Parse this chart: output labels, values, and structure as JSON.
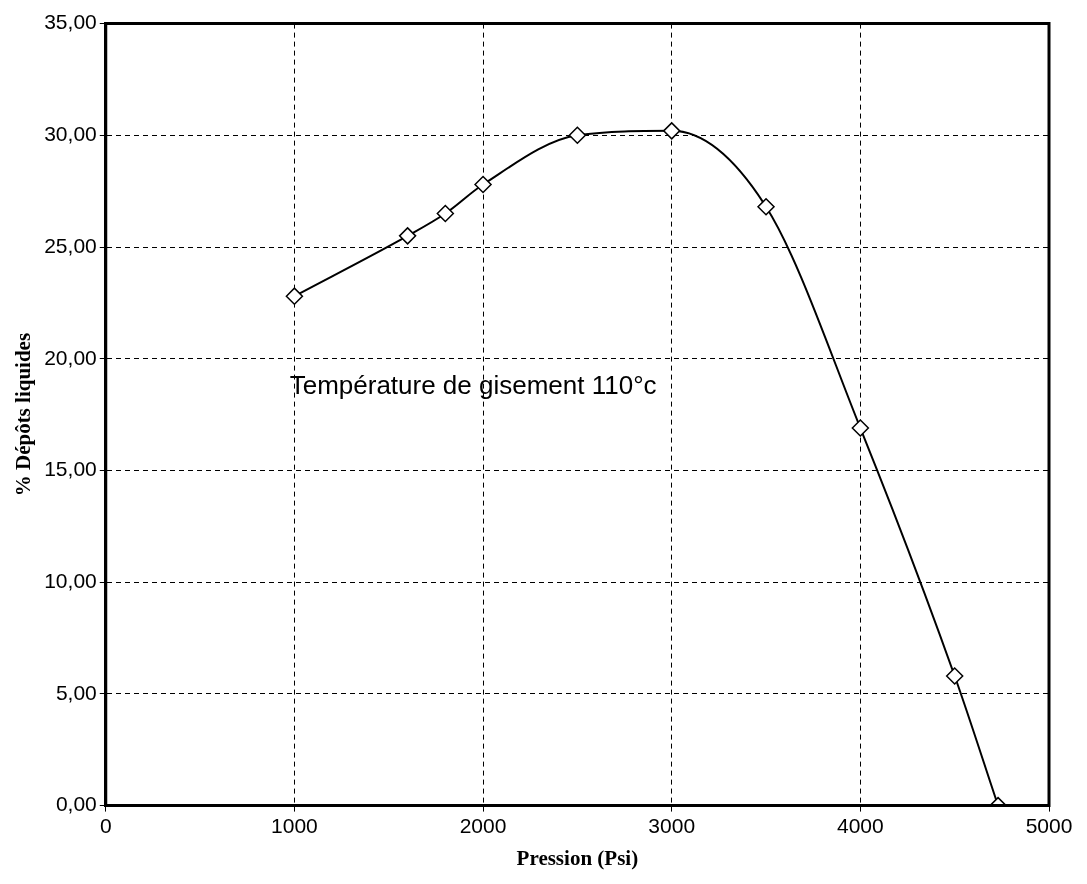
{
  "chart_data": {
    "type": "line",
    "xlabel": "Pression (Psi)",
    "ylabel": "% Dépôts liquides",
    "x": [
      1000,
      1600,
      1800,
      2000,
      2500,
      3000,
      3500,
      4000,
      4500,
      4730
    ],
    "series": [
      {
        "color": "#000000",
        "values": [
          22.8,
          25.5,
          26.5,
          27.8,
          30.0,
          30.2,
          26.8,
          16.9,
          5.8,
          0
        ]
      }
    ],
    "xlim": [
      0,
      5000
    ],
    "xticks": [
      0,
      1000,
      2000,
      3000,
      4000,
      5000
    ],
    "ylim": [
      0,
      35
    ],
    "yticks": [
      {
        "value": 0,
        "label": "0,00"
      },
      {
        "value": 5,
        "label": "5,00"
      },
      {
        "value": 10,
        "label": "10,00"
      },
      {
        "value": 15,
        "label": "15,00"
      },
      {
        "value": 20,
        "label": "20,00"
      },
      {
        "value": 25,
        "label": "25,00"
      },
      {
        "value": 30,
        "label": "30,00"
      },
      {
        "value": 35,
        "label": "35,00"
      }
    ],
    "grid": true,
    "legend": false,
    "marker": "diamond",
    "line_style": "solid",
    "annotations": [
      "Température de gisement 110°c"
    ]
  }
}
